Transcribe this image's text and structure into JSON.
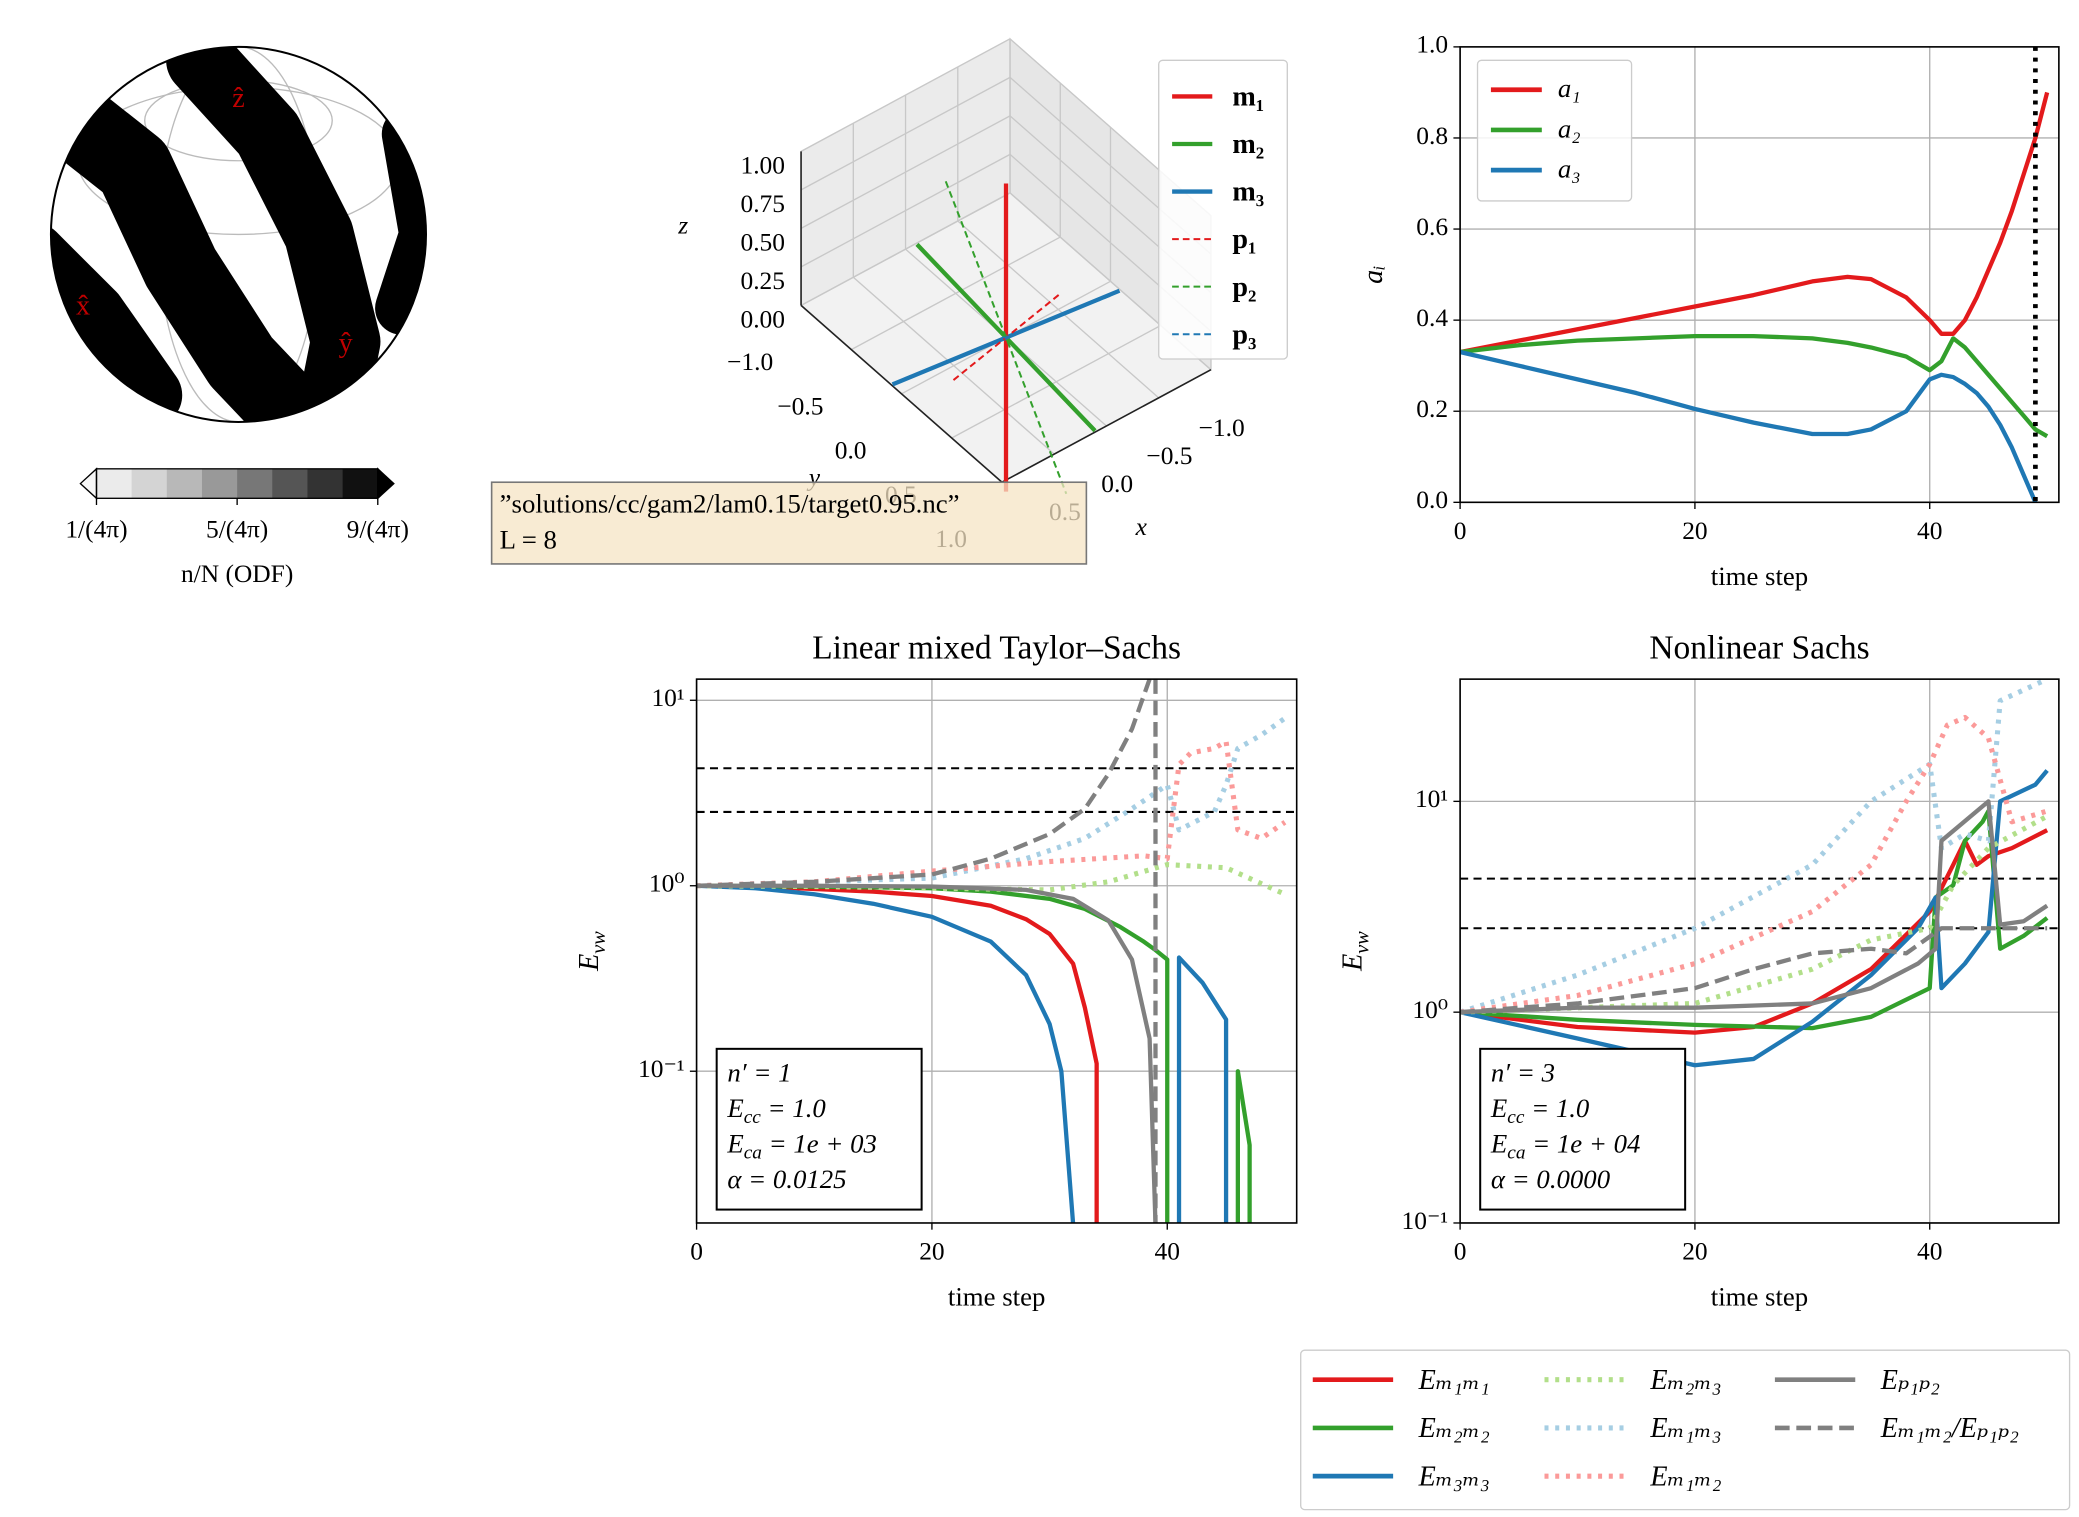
{
  "chart_data": [
    {
      "type": "odf",
      "axis_labels": [
        "ẑ",
        "x̂",
        "ŷ"
      ],
      "colorbar": {
        "lim": [
          1,
          9
        ],
        "ticks": [
          {
            "value": 1,
            "label": "1/(4π)"
          },
          {
            "value": 5,
            "label": "5/(4π)"
          },
          {
            "value": 9,
            "label": "9/(4π)"
          }
        ],
        "label": "n/N (ODF)",
        "colors": [
          "#ebebeb",
          "#d4d4d4",
          "#b8b8b8",
          "#999999",
          "#777777",
          "#555555",
          "#333333",
          "#111111"
        ],
        "under_color": "#f7f7f7",
        "over_color": "#000000"
      }
    },
    {
      "type": "vectors3d",
      "xlabel": "x",
      "ylabel": "y",
      "zlabel": "z",
      "xlim": [
        -1,
        1
      ],
      "ylim": [
        -1,
        1
      ],
      "zlim": [
        0,
        1
      ],
      "xticks": [
        {
          "value": -1,
          "label": "−1.0"
        },
        {
          "value": -0.5,
          "label": "−0.5"
        },
        {
          "value": 0,
          "label": "0.0"
        },
        {
          "value": 0.5,
          "label": "0.5"
        }
      ],
      "yticks": [
        {
          "value": -1,
          "label": "−1.0"
        },
        {
          "value": -0.5,
          "label": "−0.5"
        },
        {
          "value": 0,
          "label": "0.0"
        },
        {
          "value": 0.5,
          "label": "0.5"
        },
        {
          "value": 1,
          "label": "1.0"
        }
      ],
      "zticks": [
        {
          "value": 0,
          "label": "0.00"
        },
        {
          "value": 0.25,
          "label": "0.25"
        },
        {
          "value": 0.5,
          "label": "0.50"
        },
        {
          "value": 0.75,
          "label": "0.75"
        },
        {
          "value": 1,
          "label": "1.00"
        }
      ],
      "series": [
        {
          "name": "m₁",
          "color": "#e31a1c",
          "style": "solid",
          "vector": [
            0,
            0,
            1
          ]
        },
        {
          "name": "m₂",
          "color": "#33a02c",
          "style": "solid",
          "vector": [
            0.1,
            0.99,
            0
          ]
        },
        {
          "name": "m₃",
          "color": "#1f78b4",
          "style": "solid",
          "vector": [
            0.99,
            -0.1,
            0
          ]
        },
        {
          "name": "p₁",
          "color": "#e31a1c",
          "style": "dashed",
          "vector": [
            0.6,
            0.1,
            0
          ]
        },
        {
          "name": "p₂",
          "color": "#33a02c",
          "style": "dashed",
          "vector": [
            0,
            0.6,
            -0.67
          ]
        },
        {
          "name": "p₃",
          "color": "#1f78b4",
          "style": "dashed",
          "vector": [
            0.9,
            -0.1,
            0
          ]
        }
      ],
      "annotation": [
        "”solutions/cc/gam2/lam0.15/target0.95.nc”",
        "L = 8"
      ]
    },
    {
      "type": "line",
      "xlabel": "time step",
      "ylabel": "aᵢ",
      "xlim": [
        0,
        51
      ],
      "ylim": [
        0,
        1
      ],
      "xticks": [
        0,
        20,
        40
      ],
      "yticks": [
        {
          "value": 0,
          "label": "0.0"
        },
        {
          "value": 0.2,
          "label": "0.2"
        },
        {
          "value": 0.4,
          "label": "0.4"
        },
        {
          "value": 0.6,
          "label": "0.6"
        },
        {
          "value": 0.8,
          "label": "0.8"
        },
        {
          "value": 1,
          "label": "1.0"
        }
      ],
      "grid": true,
      "legend": "upper left",
      "vlines": [
        49
      ],
      "series": [
        {
          "name": "a₁",
          "color": "#e31a1c",
          "style": "solid",
          "x": [
            0,
            5,
            10,
            15,
            20,
            25,
            30,
            33,
            35,
            38,
            40,
            41,
            42,
            43,
            44,
            45,
            46,
            47,
            48,
            49,
            50
          ],
          "values": [
            0.33,
            0.355,
            0.38,
            0.405,
            0.43,
            0.455,
            0.485,
            0.495,
            0.49,
            0.45,
            0.4,
            0.37,
            0.37,
            0.4,
            0.45,
            0.51,
            0.57,
            0.64,
            0.72,
            0.8,
            0.9
          ]
        },
        {
          "name": "a₂",
          "color": "#33a02c",
          "style": "solid",
          "x": [
            0,
            5,
            10,
            15,
            20,
            25,
            30,
            33,
            35,
            38,
            40,
            41,
            42,
            43,
            44,
            45,
            46,
            47,
            48,
            49,
            50
          ],
          "values": [
            0.33,
            0.345,
            0.355,
            0.36,
            0.365,
            0.365,
            0.36,
            0.35,
            0.34,
            0.32,
            0.29,
            0.31,
            0.36,
            0.34,
            0.31,
            0.28,
            0.25,
            0.22,
            0.19,
            0.16,
            0.145
          ]
        },
        {
          "name": "a₃",
          "color": "#1f78b4",
          "style": "solid",
          "x": [
            0,
            5,
            10,
            15,
            20,
            25,
            30,
            33,
            35,
            38,
            40,
            41,
            42,
            43,
            44,
            45,
            46,
            47,
            48,
            49,
            50
          ],
          "values": [
            0.33,
            0.3,
            0.27,
            0.24,
            0.205,
            0.175,
            0.15,
            0.15,
            0.16,
            0.2,
            0.27,
            0.28,
            0.275,
            0.26,
            0.24,
            0.21,
            0.17,
            0.12,
            0.06,
            0.0,
            null
          ]
        }
      ]
    },
    {
      "type": "line",
      "title": "Linear mixed Taylor–Sachs",
      "xlabel": "time step",
      "ylabel": {
        "text": "E",
        "sub": "vw"
      },
      "xlim": [
        0,
        51
      ],
      "ylim": [
        0.0152,
        13
      ],
      "yscale": "log",
      "xticks": [
        0,
        20,
        40
      ],
      "yticks": [
        {
          "value": 0.1,
          "label": "10⁻¹"
        },
        {
          "value": 1,
          "label": "10⁰"
        },
        {
          "value": 10,
          "label": "10¹"
        }
      ],
      "grid": true,
      "hlines": [
        4.3,
        2.5
      ],
      "legend": "lower right",
      "annotation": [
        {
          "text": "n′ = 1"
        },
        {
          "text": "E",
          "sub": "cc",
          "after": " = 1.0"
        },
        {
          "text": "E",
          "sub": "ca",
          "after": " = 1e + 03"
        },
        {
          "text": "α = 0.0125"
        }
      ],
      "series": [
        {
          "name": "Eₘ₁ₘ₁",
          "color": "#e31a1c",
          "style": "solid",
          "x": [
            0,
            5,
            10,
            15,
            20,
            25,
            28,
            30,
            32,
            33,
            34,
            34
          ],
          "values": [
            1,
            0.99,
            0.96,
            0.93,
            0.88,
            0.78,
            0.66,
            0.55,
            0.38,
            0.22,
            0.11,
            0.015
          ]
        },
        {
          "name": "Eₘ₂ₘ₂",
          "color": "#33a02c",
          "style": "solid",
          "x": [
            0,
            10,
            20,
            25,
            30,
            33,
            36,
            38,
            39,
            40,
            40,
            41,
            46,
            46,
            47,
            47
          ],
          "values": [
            1,
            0.99,
            0.97,
            0.93,
            0.85,
            0.75,
            0.6,
            0.5,
            0.45,
            0.4,
            0.015,
            null,
            0.015,
            0.1,
            0.04,
            0.015
          ]
        },
        {
          "name": "Eₘ₃ₘ₃",
          "color": "#1f78b4",
          "style": "solid",
          "x": [
            0,
            5,
            10,
            15,
            20,
            25,
            28,
            30,
            31,
            32,
            33,
            41,
            41,
            43,
            45,
            45
          ],
          "values": [
            1,
            0.97,
            0.9,
            0.8,
            0.68,
            0.5,
            0.33,
            0.18,
            0.1,
            0.015,
            null,
            0.015,
            0.41,
            0.3,
            0.19,
            0.015
          ]
        },
        {
          "name": "Eₘ₂ₘ₃",
          "color": "#b2df8a",
          "style": "dotted",
          "x": [
            0,
            10,
            20,
            30,
            35,
            40,
            45,
            50
          ],
          "values": [
            1,
            0.99,
            0.97,
            0.95,
            1.05,
            1.3,
            1.25,
            0.9
          ]
        },
        {
          "name": "Eₘ₁ₘ₃",
          "color": "#a6cee3",
          "style": "dotted",
          "x": [
            0,
            10,
            20,
            28,
            33,
            37,
            40,
            41,
            44,
            45,
            46,
            48,
            50
          ],
          "values": [
            1,
            1.05,
            1.1,
            1.4,
            1.8,
            2.6,
            3.5,
            2.0,
            2.5,
            3.5,
            5.5,
            6.5,
            8
          ]
        },
        {
          "name": "Eₘ₁ₘ₂",
          "color": "#fb9a99",
          "style": "dotted",
          "x": [
            0,
            10,
            20,
            30,
            38,
            40,
            41,
            42,
            44,
            45,
            46,
            48,
            50
          ],
          "values": [
            1,
            1.05,
            1.2,
            1.35,
            1.45,
            1.4,
            4.5,
            5.2,
            5.5,
            6,
            2.0,
            1.8,
            2.2
          ]
        },
        {
          "name": "Eₚ₁ₚ₂",
          "color": "#808080",
          "style": "solid",
          "x": [
            0,
            10,
            20,
            28,
            32,
            35,
            37,
            38.5,
            39
          ],
          "values": [
            1,
            1,
            0.99,
            0.95,
            0.85,
            0.65,
            0.4,
            0.15,
            0.015
          ]
        },
        {
          "name": "Eₘ₁ₘ₂/Eₚ₁ₚ₂",
          "color": "#808080",
          "style": "dashed",
          "x": [
            0,
            10,
            20,
            25,
            30,
            33,
            35,
            37,
            38.5,
            39,
            39,
            39
          ],
          "values": [
            1,
            1.05,
            1.15,
            1.4,
            1.9,
            2.6,
            4,
            7,
            13,
            null,
            13,
            0.015
          ]
        }
      ]
    },
    {
      "type": "line",
      "title": "Nonlinear Sachs",
      "xlabel": "time step",
      "ylabel": {
        "text": "E",
        "sub": "vw"
      },
      "xlim": [
        0,
        51
      ],
      "ylim": [
        0.1,
        38
      ],
      "yscale": "log",
      "xticks": [
        0,
        20,
        40
      ],
      "yticks": [
        {
          "value": 0.1,
          "label": "10⁻¹"
        },
        {
          "value": 1,
          "label": "10⁰"
        },
        {
          "value": 10,
          "label": "10¹"
        }
      ],
      "grid": true,
      "hlines": [
        4.3,
        2.5
      ],
      "annotation": [
        {
          "text": "n′ = 3"
        },
        {
          "text": "E",
          "sub": "cc",
          "after": " = 1.0"
        },
        {
          "text": "E",
          "sub": "ca",
          "after": " = 1e + 04"
        },
        {
          "text": "α = 0.0000"
        }
      ],
      "series": [
        {
          "color": "#e31a1c",
          "style": "solid",
          "x": [
            0,
            10,
            20,
            25,
            30,
            35,
            40,
            42,
            43,
            44,
            45,
            47,
            50
          ],
          "values": [
            1,
            0.85,
            0.8,
            0.85,
            1.1,
            1.6,
            3,
            5,
            6.5,
            5,
            5.5,
            6,
            7.3
          ]
        },
        {
          "color": "#33a02c",
          "style": "solid",
          "x": [
            0,
            10,
            20,
            30,
            35,
            40,
            40.5,
            42,
            43,
            44.5,
            45,
            46,
            48,
            50
          ],
          "values": [
            1,
            0.92,
            0.87,
            0.84,
            0.95,
            1.3,
            3.5,
            4,
            6.5,
            8,
            9,
            2,
            2.3,
            2.8
          ]
        },
        {
          "color": "#1f78b4",
          "style": "solid",
          "x": [
            0,
            10,
            20,
            25,
            30,
            35,
            39,
            40.5,
            41,
            43,
            45,
            46,
            49,
            50
          ],
          "values": [
            1,
            0.75,
            0.56,
            0.6,
            0.9,
            1.5,
            2.5,
            3.5,
            1.3,
            1.7,
            2.4,
            10,
            12,
            14
          ]
        },
        {
          "color": "#b2df8a",
          "style": "dotted",
          "x": [
            0,
            20,
            30,
            35,
            40,
            42,
            45,
            50
          ],
          "values": [
            1,
            1.1,
            1.6,
            2.2,
            2.5,
            4,
            6,
            8.5
          ]
        },
        {
          "color": "#a6cee3",
          "style": "dotted",
          "x": [
            0,
            10,
            20,
            30,
            35,
            40,
            41,
            43,
            45,
            46,
            50
          ],
          "values": [
            1,
            1.5,
            2.5,
            5,
            10,
            15,
            6,
            7,
            6.5,
            30,
            38
          ]
        },
        {
          "color": "#fb9a99",
          "style": "dotted",
          "x": [
            0,
            10,
            20,
            30,
            35,
            38,
            40,
            41.5,
            43,
            45,
            47,
            50
          ],
          "values": [
            1,
            1.2,
            1.7,
            3,
            5,
            10,
            15,
            23,
            25,
            20,
            8,
            9
          ]
        },
        {
          "color": "#808080",
          "style": "solid",
          "x": [
            0,
            10,
            20,
            30,
            35,
            39,
            40.5,
            41,
            45,
            46,
            48,
            50
          ],
          "values": [
            1,
            1.05,
            1.05,
            1.1,
            1.3,
            1.7,
            2.0,
            6.5,
            10,
            2.6,
            2.7,
            3.2
          ]
        },
        {
          "color": "#808080",
          "style": "dashed",
          "x": [
            0,
            10,
            20,
            25,
            30,
            35,
            38,
            41,
            45,
            50
          ],
          "values": [
            1,
            1.1,
            1.3,
            1.6,
            1.9,
            2,
            1.9,
            2.5,
            2.5,
            2.5
          ]
        }
      ]
    }
  ]
}
